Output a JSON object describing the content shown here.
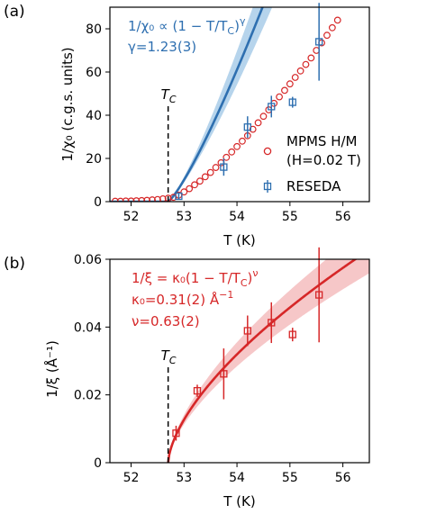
{
  "chart_data": [
    {
      "type": "line",
      "panel_label": "(a)",
      "xlabel": "T (K)",
      "ylabel": "1/χ₀ (c.g.s. units)",
      "xlim": [
        51.6,
        56.5
      ],
      "ylim": [
        0,
        90
      ],
      "xticks": [
        "52",
        "53",
        "54",
        "55",
        "56"
      ],
      "yticks": [
        "0",
        "20",
        "40",
        "60",
        "80"
      ],
      "tc": 52.7,
      "tc_label": "T",
      "tc_sub": "C",
      "annotation_line1": "1/χ₀ ∝ (1 − T/T",
      "annotation_line1_sub": "C",
      "annotation_line1_tail": ")",
      "annotation_line1_sup": "γ",
      "annotation_line2": "γ=1.23(3)",
      "colors": {
        "mpms": "#d62728",
        "reseda": "#2e6fb0",
        "fit": "#2e6fb0",
        "band": "#9ec5e6"
      },
      "fit": {
        "x0": 52.7,
        "a": 44.2,
        "exp": 1.23,
        "a_lo": 39.2,
        "a_hi": 50.5
      },
      "legend": [
        {
          "label_line1": "MPMS H/M",
          "label_line2": "(H=0.02 T)",
          "marker": "open-circle"
        },
        {
          "label_line1": "RESEDA",
          "marker": "open-square-errorbar"
        }
      ],
      "series": [
        {
          "name": "MPMS H/M",
          "x": [
            51.7,
            51.8,
            51.9,
            52.0,
            52.1,
            52.2,
            52.3,
            52.4,
            52.5,
            52.6,
            52.7,
            52.8,
            52.9,
            53.0,
            53.1,
            53.2,
            53.3,
            53.4,
            53.5,
            53.6,
            53.7,
            53.8,
            53.9,
            54.0,
            54.1,
            54.2,
            54.3,
            54.4,
            54.5,
            54.6,
            54.7,
            54.8,
            54.9,
            55.0,
            55.1,
            55.2,
            55.3,
            55.4,
            55.5,
            55.6,
            55.7,
            55.8,
            55.9
          ],
          "y": [
            0.2,
            0.2,
            0.3,
            0.3,
            0.4,
            0.5,
            0.6,
            0.8,
            1.0,
            1.3,
            1.6,
            2.0,
            3.0,
            4.5,
            6.0,
            7.8,
            9.5,
            11.5,
            13.5,
            15.8,
            18.0,
            20.5,
            23.0,
            25.5,
            28.0,
            30.5,
            33.5,
            36.5,
            39.5,
            42.5,
            45.5,
            48.5,
            51.5,
            54.5,
            57.5,
            60.5,
            63.5,
            66.5,
            70.0,
            73.5,
            77.0,
            80.5,
            84.0
          ]
        },
        {
          "name": "RESEDA",
          "x": [
            52.9,
            53.75,
            54.2,
            54.65,
            55.05,
            55.55
          ],
          "y": [
            2.5,
            16.0,
            34.5,
            44.0,
            46.0,
            74.0
          ],
          "yerr": [
            1.5,
            4.0,
            5.0,
            5.0,
            2.5,
            18.0
          ]
        }
      ]
    },
    {
      "type": "scatter",
      "panel_label": "(b)",
      "xlabel": "T (K)",
      "ylabel": "1/ξ (Å⁻¹)",
      "xlim": [
        51.6,
        56.5
      ],
      "ylim": [
        0,
        0.06
      ],
      "xticks": [
        "52",
        "53",
        "54",
        "55",
        "56"
      ],
      "yticks": [
        "0",
        "0.02",
        "0.04",
        "0.06"
      ],
      "tc": 52.7,
      "tc_label": "T",
      "tc_sub": "C",
      "annotation_line1": "1/ξ = κ₀(1 − T/T",
      "annotation_line1_sub": "C",
      "annotation_line1_tail": ")",
      "annotation_line1_sup": "ν",
      "annotation_line2": "κ₀=0.31(2) Å",
      "annotation_line2_sup": "−1",
      "annotation_line3": "ν=0.63(2)",
      "colors": {
        "data": "#d62728",
        "fit": "#d62728",
        "band": "#f3b4b6"
      },
      "fit": {
        "x0": 52.7,
        "a": 0.02708,
        "exp": 0.63,
        "a_lo": 0.0241,
        "a_hi": 0.0301
      },
      "series": [
        {
          "name": "1/ξ",
          "x": [
            52.85,
            53.25,
            53.75,
            54.2,
            54.65,
            55.05,
            55.55
          ],
          "y": [
            0.0087,
            0.0212,
            0.0262,
            0.0389,
            0.0413,
            0.0378,
            0.0495
          ],
          "yerr": [
            0.0022,
            0.0018,
            0.0075,
            0.0045,
            0.006,
            0.002,
            0.014
          ]
        }
      ]
    }
  ]
}
